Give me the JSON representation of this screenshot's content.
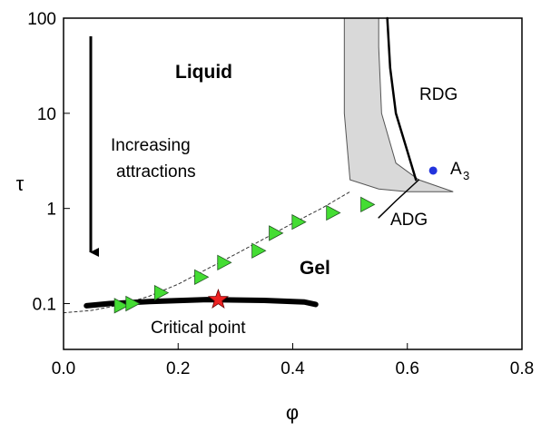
{
  "chart_data": {
    "type": "line",
    "xlabel": "φ",
    "ylabel": "τ",
    "xlim": [
      0,
      0.8
    ],
    "ylim": [
      0.033,
      100
    ],
    "ylog": true,
    "xticks": [
      {
        "value": 0,
        "label": "0.0"
      },
      0.2,
      0.4,
      0.6,
      0.8
    ],
    "yticks": [
      0.1,
      1,
      10,
      100
    ],
    "annotations": {
      "liquid": "Liquid",
      "gel": "Gel",
      "rdg": "RDG",
      "adg": "ADG",
      "critical": "Critical point",
      "arrow1": "Increasing",
      "arrow2": "attractions",
      "a3": "A",
      "a3sub": "3"
    },
    "series": [
      {
        "kind": "area",
        "color": "#d9d9d9",
        "x": [
          0.49,
          0.49,
          0.5,
          0.55,
          0.6,
          0.68,
          0.62,
          0.58,
          0.555,
          0.55,
          0.55
        ],
        "values": [
          100,
          10,
          2,
          1.6,
          1.5,
          1.5,
          2,
          3,
          10,
          50,
          100
        ]
      },
      {
        "kind": "line",
        "color": "#333333",
        "width": 1,
        "dash": true,
        "x": [
          0,
          0.05,
          0.1,
          0.15,
          0.2,
          0.25,
          0.3,
          0.35,
          0.4,
          0.45,
          0.5
        ],
        "values": [
          0.08,
          0.085,
          0.097,
          0.12,
          0.16,
          0.23,
          0.33,
          0.48,
          0.7,
          1.0,
          1.5
        ]
      },
      {
        "kind": "line",
        "color": "#000000",
        "width": 6,
        "x": [
          0.04,
          0.08,
          0.15,
          0.25,
          0.35,
          0.42,
          0.44
        ],
        "values": [
          0.095,
          0.1,
          0.105,
          0.11,
          0.108,
          0.104,
          0.098
        ]
      },
      {
        "kind": "line",
        "color": "#000000",
        "width": 2.5,
        "x": [
          0.565,
          0.57,
          0.58,
          0.6,
          0.615
        ],
        "values": [
          100,
          30,
          10,
          4,
          2
        ]
      },
      {
        "kind": "line",
        "color": "#000000",
        "width": 1.5,
        "x": [
          0.55,
          0.58,
          0.62
        ],
        "values": [
          0.8,
          1.2,
          2
        ]
      },
      {
        "kind": "triangle",
        "color": "#44dd33",
        "x": [
          0.1,
          0.12,
          0.17,
          0.24,
          0.28,
          0.34,
          0.37,
          0.41,
          0.47,
          0.53
        ],
        "values": [
          0.095,
          0.1,
          0.13,
          0.19,
          0.27,
          0.36,
          0.55,
          0.72,
          0.9,
          1.1
        ]
      },
      {
        "kind": "star",
        "color": "#ee2222",
        "x": [
          0.27
        ],
        "values": [
          0.11
        ]
      },
      {
        "kind": "dot",
        "color": "#2233dd",
        "x": [
          0.645
        ],
        "values": [
          2.5
        ]
      }
    ]
  }
}
